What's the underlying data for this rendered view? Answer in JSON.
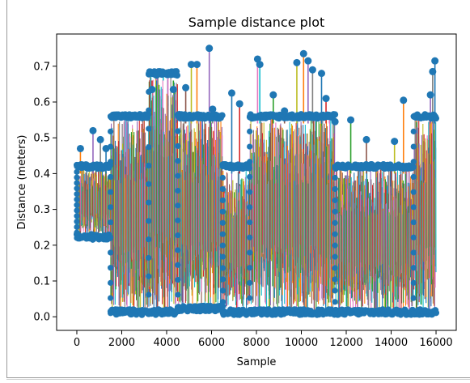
{
  "chart_data": {
    "type": "line",
    "title": "Sample distance plot",
    "xlabel": "Sample",
    "ylabel": "Distance (meters)",
    "xlim": [
      -900,
      16900
    ],
    "ylim": [
      -0.038,
      0.79
    ],
    "xticks": [
      0,
      2000,
      4000,
      6000,
      8000,
      10000,
      12000,
      14000,
      16000
    ],
    "xtick_labels": [
      "0",
      "2000",
      "4000",
      "6000",
      "8000",
      "10000",
      "12000",
      "14000",
      "16000"
    ],
    "yticks": [
      0.0,
      0.1,
      0.2,
      0.3,
      0.4,
      0.5,
      0.6,
      0.7
    ],
    "ytick_labels": [
      "0.0",
      "0.1",
      "0.2",
      "0.3",
      "0.4",
      "0.5",
      "0.6",
      "0.7"
    ],
    "grid": false,
    "legend": "none",
    "marker_color": "#1f77b4",
    "series_colors": [
      "#1f77b4",
      "#ff7f0e",
      "#2ca02c",
      "#d62728",
      "#9467bd",
      "#8c564b",
      "#e377c2",
      "#7f7f7f",
      "#bcbd22",
      "#17becf"
    ],
    "regions": [
      {
        "x": [
          0,
          1500
        ],
        "low": 0.22,
        "high": 0.42
      },
      {
        "x": [
          1500,
          3200
        ],
        "low": 0.01,
        "high": 0.56
      },
      {
        "x": [
          3200,
          4500
        ],
        "low": 0.01,
        "high": 0.68
      },
      {
        "x": [
          4500,
          6500
        ],
        "low": 0.02,
        "high": 0.56
      },
      {
        "x": [
          6500,
          7700
        ],
        "low": 0.01,
        "high": 0.42
      },
      {
        "x": [
          7700,
          11500
        ],
        "low": 0.01,
        "high": 0.56
      },
      {
        "x": [
          11500,
          15000
        ],
        "low": 0.01,
        "high": 0.42
      },
      {
        "x": [
          15000,
          16000
        ],
        "low": 0.01,
        "high": 0.56
      }
    ],
    "peaks": [
      {
        "x": 160,
        "y": 0.47
      },
      {
        "x": 720,
        "y": 0.52
      },
      {
        "x": 1050,
        "y": 0.495
      },
      {
        "x": 1300,
        "y": 0.47
      },
      {
        "x": 3350,
        "y": 0.635
      },
      {
        "x": 3550,
        "y": 0.675
      },
      {
        "x": 3850,
        "y": 0.68
      },
      {
        "x": 4300,
        "y": 0.635
      },
      {
        "x": 4850,
        "y": 0.64
      },
      {
        "x": 5100,
        "y": 0.705
      },
      {
        "x": 5350,
        "y": 0.705
      },
      {
        "x": 5900,
        "y": 0.75
      },
      {
        "x": 6050,
        "y": 0.58
      },
      {
        "x": 6900,
        "y": 0.625
      },
      {
        "x": 7250,
        "y": 0.595
      },
      {
        "x": 8050,
        "y": 0.72
      },
      {
        "x": 8150,
        "y": 0.705
      },
      {
        "x": 8750,
        "y": 0.62
      },
      {
        "x": 9250,
        "y": 0.575
      },
      {
        "x": 9800,
        "y": 0.71
      },
      {
        "x": 10100,
        "y": 0.735
      },
      {
        "x": 10300,
        "y": 0.715
      },
      {
        "x": 10500,
        "y": 0.69
      },
      {
        "x": 10900,
        "y": 0.68
      },
      {
        "x": 11100,
        "y": 0.61
      },
      {
        "x": 11250,
        "y": 0.56
      },
      {
        "x": 11500,
        "y": 0.545
      },
      {
        "x": 12200,
        "y": 0.55
      },
      {
        "x": 12900,
        "y": 0.495
      },
      {
        "x": 14150,
        "y": 0.49
      },
      {
        "x": 14550,
        "y": 0.605
      },
      {
        "x": 15750,
        "y": 0.62
      },
      {
        "x": 15850,
        "y": 0.685
      },
      {
        "x": 15950,
        "y": 0.715
      }
    ]
  }
}
